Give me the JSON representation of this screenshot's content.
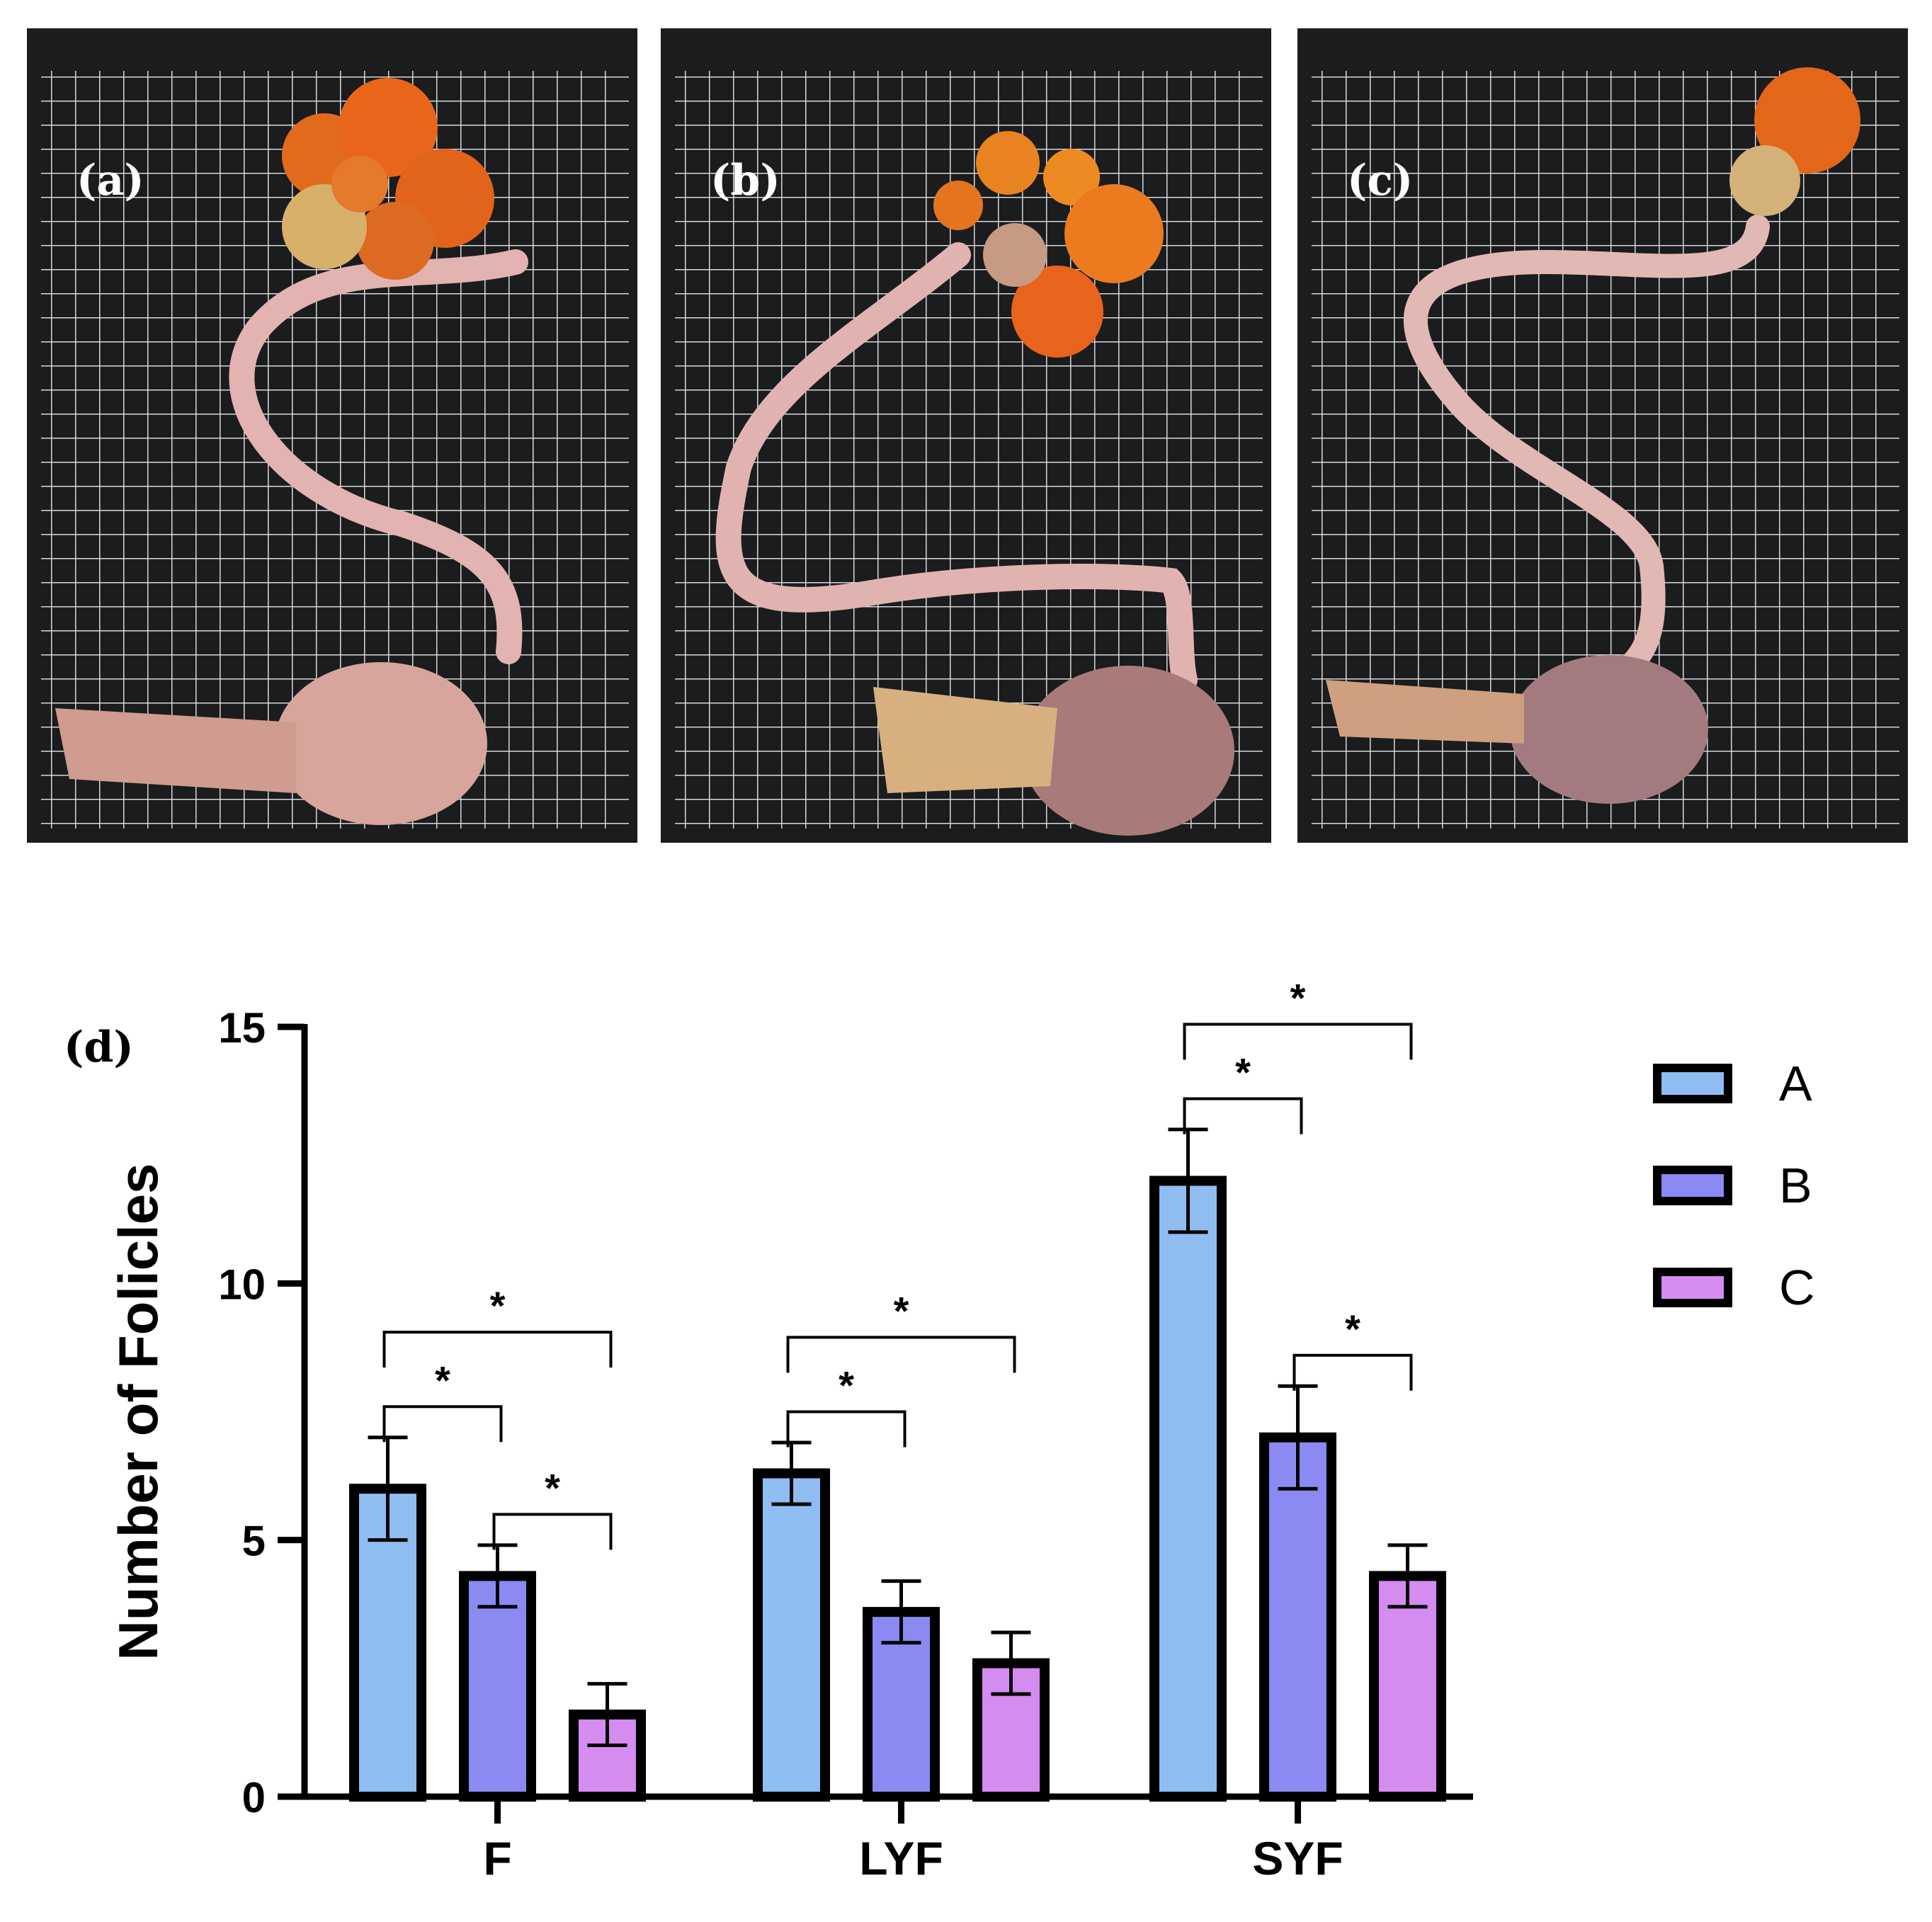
{
  "panels": [
    {
      "label": "(a)",
      "tint": "#cf7d58"
    },
    {
      "label": "(b)",
      "tint": "#b86b4e"
    },
    {
      "label": "(c)",
      "tint": "#c17a64"
    }
  ],
  "chart_panel_label": "(d)",
  "chart_data": {
    "type": "bar",
    "title": "",
    "xlabel": "",
    "ylabel": "Number of Folicles",
    "ylim": [
      0,
      15
    ],
    "yticks": [
      "0",
      "5",
      "10",
      "15"
    ],
    "categories": [
      "F",
      "LYF",
      "SYF"
    ],
    "series": [
      {
        "name": "A",
        "color": "#8fbdf2",
        "values": [
          6.0,
          6.3,
          12.0
        ],
        "errors": [
          1.0,
          0.6,
          1.0
        ]
      },
      {
        "name": "B",
        "color": "#8a8af2",
        "values": [
          4.3,
          3.6,
          7.0
        ],
        "errors": [
          0.6,
          0.6,
          1.0
        ]
      },
      {
        "name": "C",
        "color": "#d48cf0",
        "values": [
          1.6,
          2.6,
          4.3
        ],
        "errors": [
          0.6,
          0.6,
          0.6
        ]
      }
    ],
    "significance": [
      {
        "category": 0,
        "from": 0,
        "to": 1,
        "label": "*"
      },
      {
        "category": 0,
        "from": 0,
        "to": 2,
        "label": "*"
      },
      {
        "category": 0,
        "from": 1,
        "to": 2,
        "label": "*"
      },
      {
        "category": 1,
        "from": 0,
        "to": 1,
        "label": "*"
      },
      {
        "category": 1,
        "from": 0,
        "to": 2,
        "label": "*"
      },
      {
        "category": 2,
        "from": 0,
        "to": 1,
        "label": "*"
      },
      {
        "category": 2,
        "from": 0,
        "to": 2,
        "label": "*"
      },
      {
        "category": 2,
        "from": 1,
        "to": 2,
        "label": "*"
      }
    ],
    "legend": "right",
    "grid": false
  }
}
